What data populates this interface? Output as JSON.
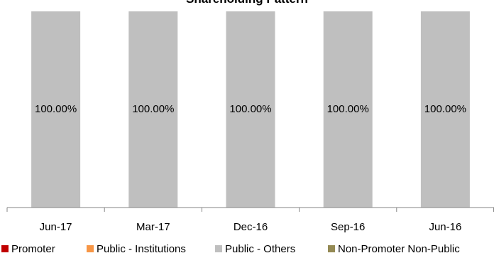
{
  "chart_data": {
    "type": "bar",
    "stacked": true,
    "title": "Shareholding Pattern",
    "categories": [
      "Jun-17",
      "Mar-17",
      "Dec-16",
      "Sep-16",
      "Jun-16"
    ],
    "series": [
      {
        "name": "Promoter",
        "color": "#c00000",
        "values": [
          0,
          0,
          0,
          0,
          0
        ]
      },
      {
        "name": "Public - Institutions",
        "color": "#f79646",
        "values": [
          0,
          0,
          0,
          0,
          0
        ]
      },
      {
        "name": "Public - Others",
        "color": "#bfbfbf",
        "values": [
          100,
          100,
          100,
          100,
          100
        ]
      },
      {
        "name": "Non-Promoter Non-Public",
        "color": "#948a54",
        "values": [
          0,
          0,
          0,
          0,
          0
        ]
      }
    ],
    "data_labels": [
      "100.00%",
      "100.00%",
      "100.00%",
      "100.00%",
      "100.00%"
    ],
    "ylim": [
      0,
      100
    ],
    "grid": false,
    "legend_position": "bottom"
  }
}
